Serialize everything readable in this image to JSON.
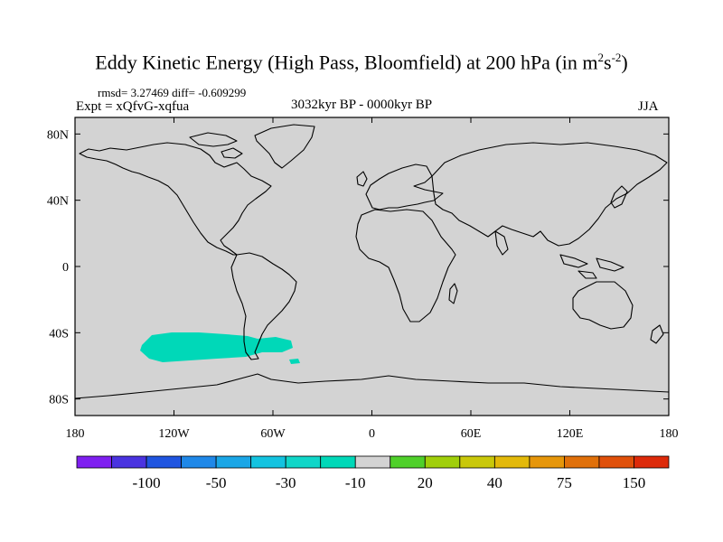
{
  "title": {
    "main": "Eddy Kinetic Energy (High Pass, Bloomfield) at 200 hPa (in m",
    "sup1": "2",
    "mid": "s",
    "sup2": "-2",
    "close": ")"
  },
  "stats": "rmsd= 3.27469 diff= -0.609299",
  "expt": "Expt = xQfvG-xqfua",
  "period": "3032kyr BP - 0000kyr BP",
  "season": "JJA",
  "map": {
    "background_color": "#d3d3d3",
    "coastline_color": "#000000",
    "anomaly_fill_color": "#00d8b8",
    "lon_range": [
      -180,
      180
    ],
    "lat_range": [
      -90,
      90
    ],
    "y_tick_labels": [
      {
        "lat": 80,
        "label": "80N"
      },
      {
        "lat": 40,
        "label": "40N"
      },
      {
        "lat": 0,
        "label": "0"
      },
      {
        "lat": -40,
        "label": "40S"
      },
      {
        "lat": -80,
        "label": "80S"
      }
    ],
    "x_tick_labels": [
      {
        "lon": -180,
        "label": "180"
      },
      {
        "lon": -120,
        "label": "120W"
      },
      {
        "lon": -60,
        "label": "60W"
      },
      {
        "lon": 0,
        "label": "0"
      },
      {
        "lon": 60,
        "label": "60E"
      },
      {
        "lon": 120,
        "label": "120E"
      },
      {
        "lon": 180,
        "label": "180"
      }
    ]
  },
  "colorbar": {
    "colors": [
      "#7f1ff0",
      "#4a33e0",
      "#1f55e0",
      "#1f88e8",
      "#1aa6e6",
      "#13c3e0",
      "#10d6c8",
      "#00d8b8",
      "#d3d3d3",
      "#4fd02a",
      "#a0cf0a",
      "#c9c80a",
      "#e3b90a",
      "#e6960a",
      "#e0700a",
      "#e0500a",
      "#dd2a0a"
    ],
    "labels": [
      {
        "after_box": 1,
        "text": "-100"
      },
      {
        "after_box": 3,
        "text": "-50"
      },
      {
        "after_box": 5,
        "text": "-30"
      },
      {
        "after_box": 7,
        "text": "-10"
      },
      {
        "after_box": 9,
        "text": "20"
      },
      {
        "after_box": 11,
        "text": "40"
      },
      {
        "after_box": 13,
        "text": "75"
      },
      {
        "after_box": 15,
        "text": "150"
      }
    ]
  }
}
